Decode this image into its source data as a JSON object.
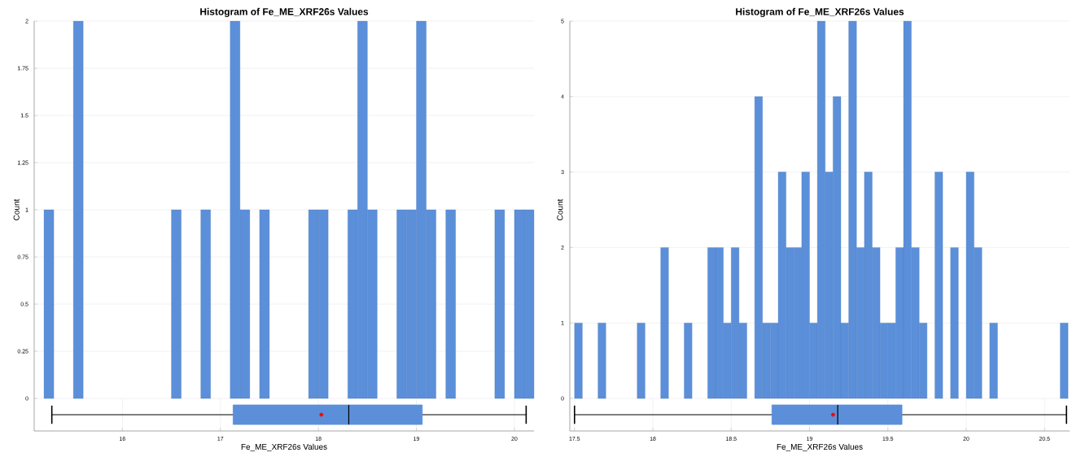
{
  "chart_data": [
    {
      "type": "histogram",
      "title": "Histogram of Fe_ME_XRF26s Values",
      "ylabel": "Count",
      "color": "#5b8fd9",
      "bins": [
        15.2,
        15.3,
        15.4,
        15.5,
        15.6,
        15.7,
        15.8,
        15.9,
        16,
        16.1,
        16.2,
        16.3,
        16.4,
        16.5,
        16.6,
        16.7,
        16.8,
        16.9,
        17,
        17.1,
        17.2,
        17.3,
        17.4,
        17.5,
        17.6,
        17.7,
        17.8,
        17.9,
        18,
        18.1,
        18.2,
        18.3,
        18.4,
        18.5,
        18.6,
        18.7,
        18.8,
        18.9,
        19,
        19.1,
        19.2,
        19.3,
        19.4,
        19.5,
        19.6,
        19.7,
        19.8,
        19.9,
        20,
        20.1,
        20.2
      ],
      "values": [
        1,
        0,
        0,
        2,
        0,
        0,
        0,
        0,
        0,
        0,
        0,
        0,
        0,
        1,
        0,
        0,
        1,
        0,
        0,
        2,
        1,
        0,
        1,
        0,
        0,
        0,
        0,
        1,
        1,
        0,
        0,
        1,
        2,
        1,
        0,
        0,
        1,
        1,
        2,
        1,
        0,
        1,
        0,
        0,
        0,
        0,
        1,
        0,
        1,
        1
      ],
      "xlim": [
        15.1,
        20.2
      ],
      "ylim": [
        0,
        2
      ],
      "xticks": [
        16,
        17,
        18,
        19,
        20
      ],
      "yticks": [
        0,
        0.25,
        0.5,
        0.75,
        1,
        1.25,
        1.5,
        1.75,
        2
      ],
      "grid": true,
      "tick_labels": "y"
    },
    {
      "type": "box",
      "orientation": "horizontal",
      "xlabel": "Fe_ME_XRF26s Values",
      "color": "#5b8fd9",
      "categories": [
        null
      ],
      "boxes": [
        {
          "low": 15.28,
          "q1": 17.13,
          "median": 18.31,
          "q3": 19.06,
          "high": 20.12,
          "mean": 18.03
        }
      ],
      "xlim": [
        15.1,
        20.2
      ],
      "xticks": [
        16,
        17,
        18,
        19,
        20
      ],
      "grid": "x",
      "tick_labels": "x"
    },
    {
      "type": "histogram",
      "title": "Histogram of Fe_ME_XRF26s Values",
      "ylabel": "Count",
      "color": "#5b8fd9",
      "bins": [
        17.5,
        17.55,
        17.6,
        17.65,
        17.7,
        17.75,
        17.8,
        17.85,
        17.9,
        17.95,
        18,
        18.05,
        18.1,
        18.15,
        18.2,
        18.25,
        18.3,
        18.35,
        18.4,
        18.45,
        18.5,
        18.55,
        18.6,
        18.65,
        18.7,
        18.75,
        18.8,
        18.85,
        18.9,
        18.95,
        19,
        19.05,
        19.1,
        19.15,
        19.2,
        19.25,
        19.3,
        19.35,
        19.4,
        19.45,
        19.5,
        19.55,
        19.6,
        19.65,
        19.7,
        19.75,
        19.8,
        19.85,
        19.9,
        19.95,
        20,
        20.05,
        20.1,
        20.15,
        20.2,
        20.25,
        20.3,
        20.35,
        20.4,
        20.45,
        20.5,
        20.55,
        20.6,
        20.65
      ],
      "values": [
        1,
        0,
        0,
        1,
        0,
        0,
        0,
        0,
        1,
        0,
        0,
        2,
        0,
        0,
        1,
        0,
        0,
        2,
        2,
        1,
        2,
        1,
        0,
        4,
        1,
        1,
        3,
        2,
        2,
        3,
        1,
        5,
        3,
        4,
        1,
        5,
        2,
        3,
        2,
        1,
        1,
        2,
        5,
        2,
        1,
        0,
        3,
        0,
        2,
        0,
        3,
        2,
        0,
        1,
        0,
        0,
        0,
        0,
        0,
        0,
        0,
        0,
        1
      ],
      "xlim": [
        17.47,
        20.66
      ],
      "ylim": [
        0,
        5
      ],
      "xticks": [
        17.5,
        18,
        18.5,
        19,
        19.5,
        20,
        20.5
      ],
      "yticks": [
        0,
        1,
        2,
        3,
        4,
        5
      ],
      "grid": true,
      "tick_labels": "y"
    },
    {
      "type": "box",
      "orientation": "horizontal",
      "xlabel": "Fe_ME_XRF26s Values",
      "color": "#5b8fd9",
      "categories": [
        null
      ],
      "boxes": [
        {
          "low": 17.5,
          "q1": 18.76,
          "median": 19.18,
          "q3": 19.59,
          "high": 20.64,
          "mean": 19.15
        }
      ],
      "xlim": [
        17.47,
        20.66
      ],
      "xticks": [
        17.5,
        18,
        18.5,
        19,
        19.5,
        20,
        20.5
      ],
      "grid": "x",
      "tick_labels": "x"
    }
  ]
}
